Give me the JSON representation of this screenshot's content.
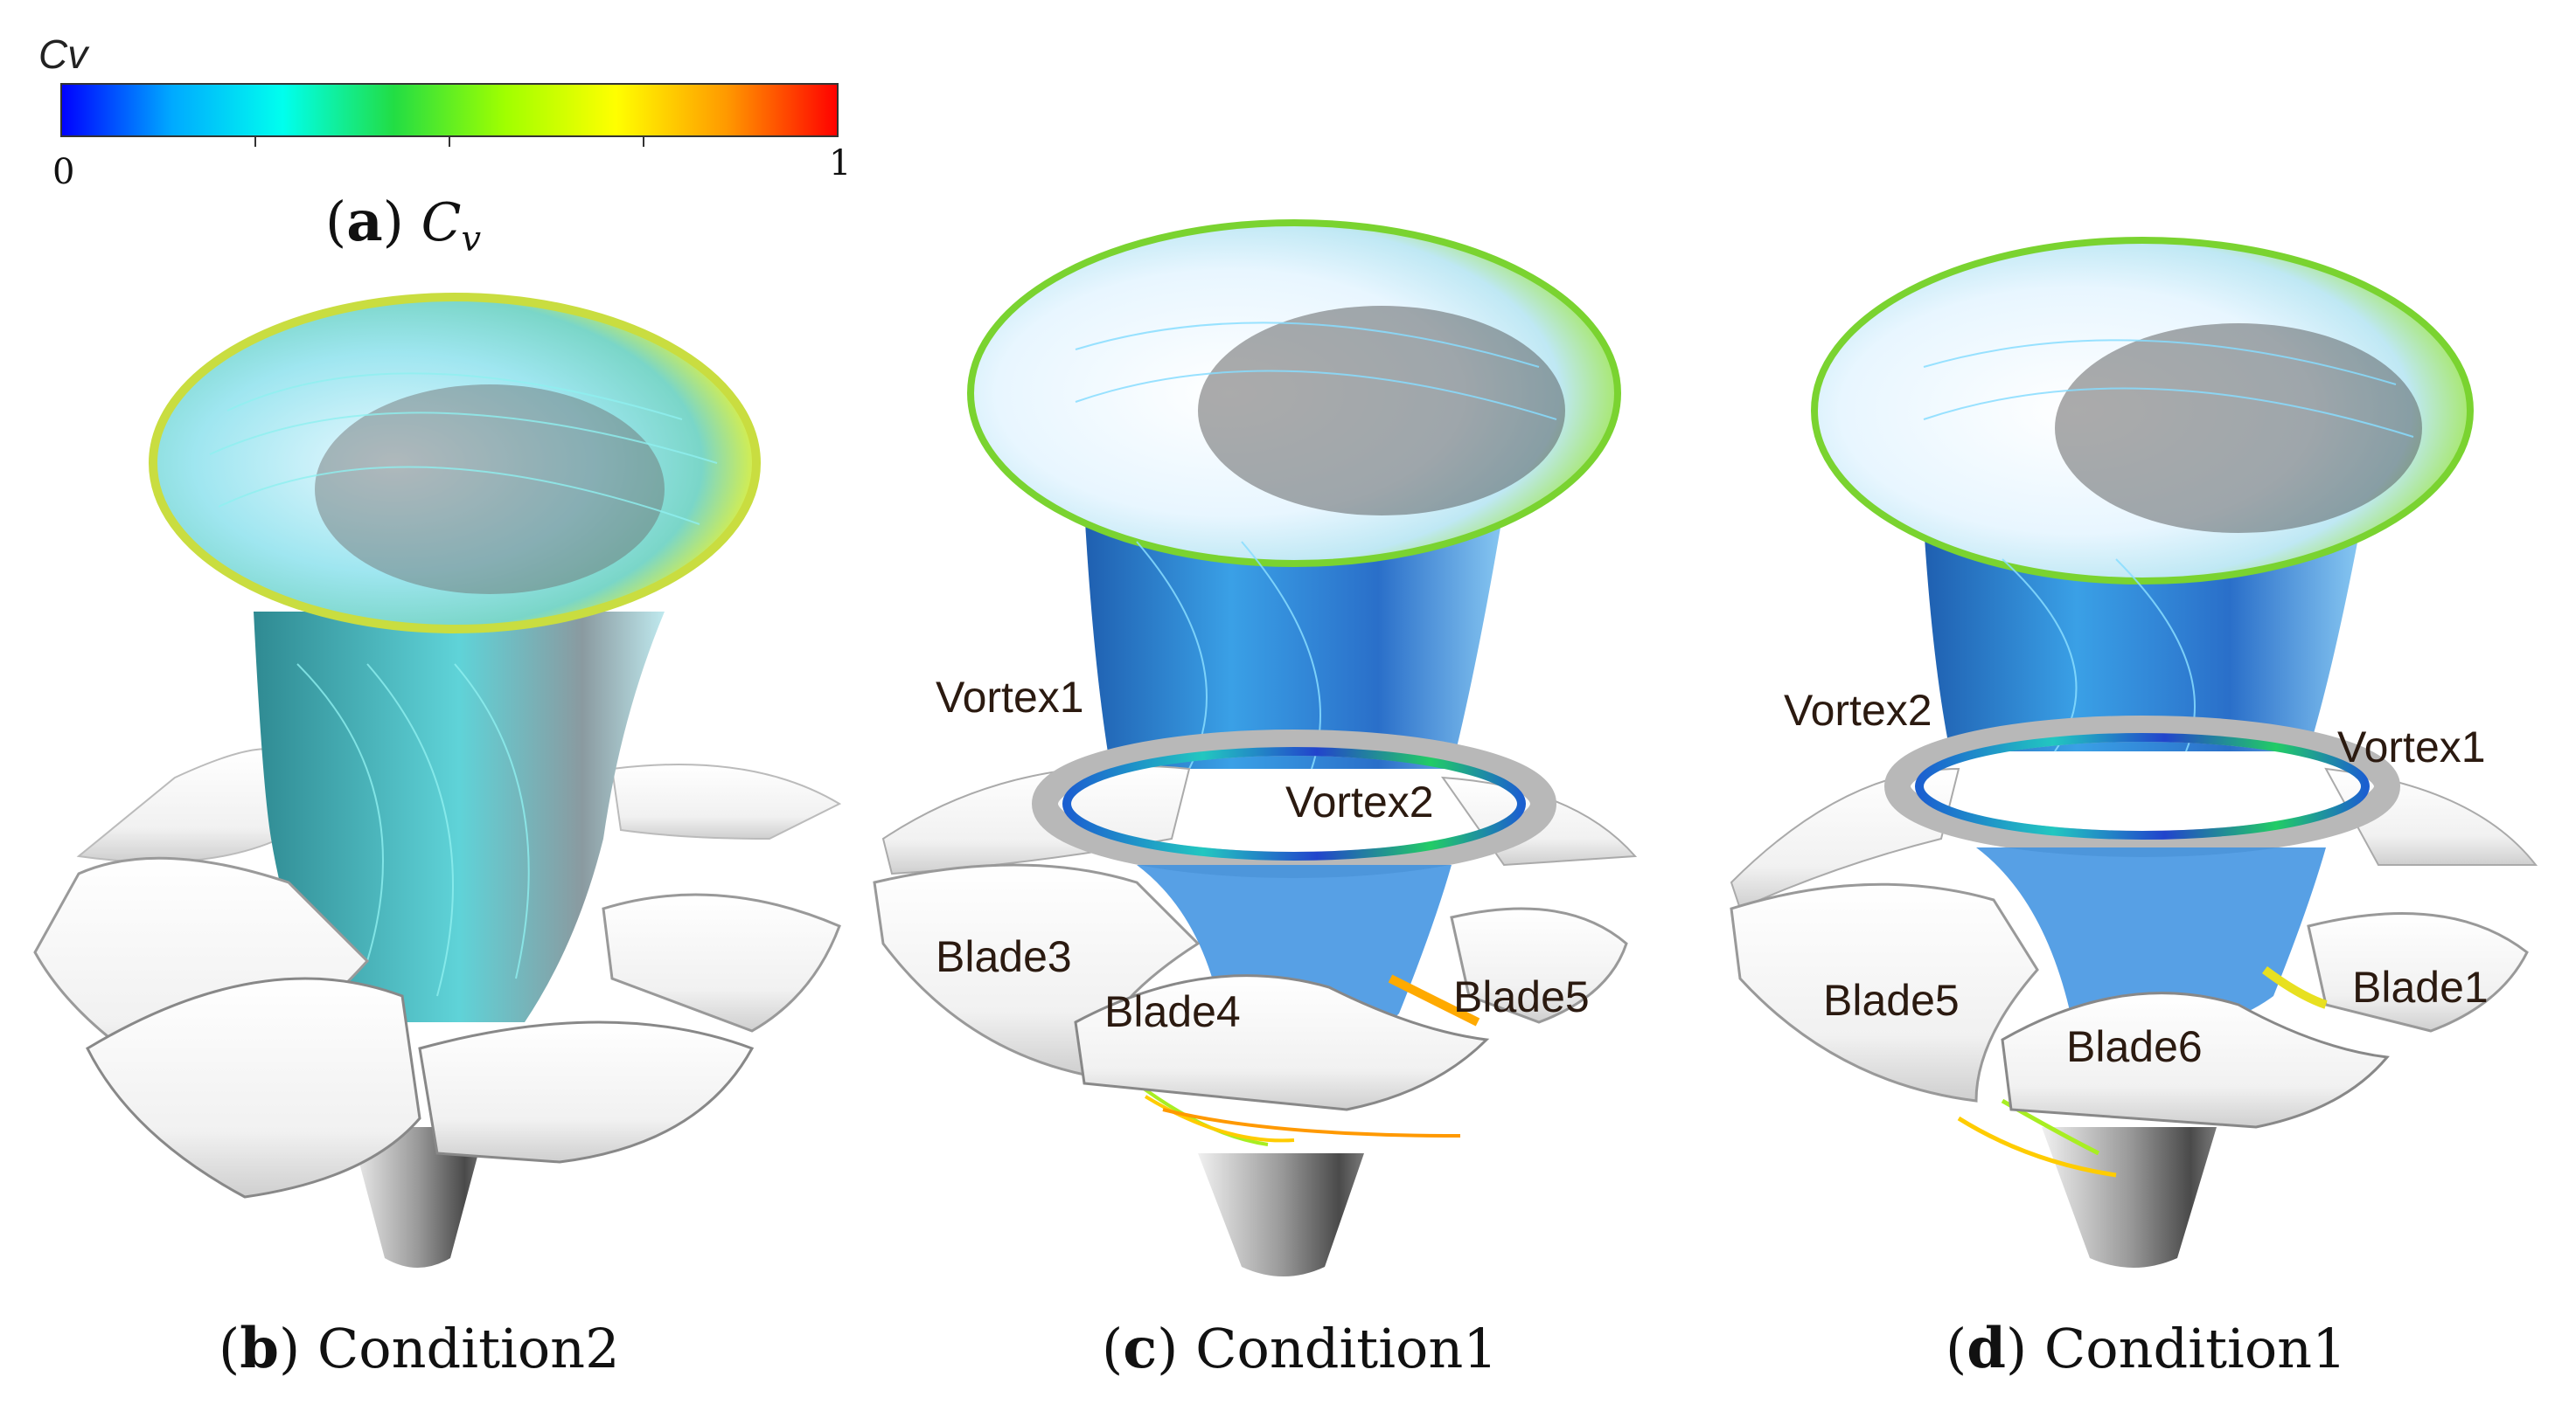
{
  "colorbar": {
    "title": "Cv",
    "min_label": "0",
    "max_label": "1",
    "min": 0,
    "max": 1,
    "stops": [
      "#0000ff",
      "#00aaff",
      "#00ffee",
      "#22dd44",
      "#a0ff00",
      "#ffff00",
      "#ff9900",
      "#ff0000"
    ]
  },
  "captions": {
    "a": {
      "letter": "a",
      "symbol": "C",
      "subscript": "v"
    },
    "b": {
      "letter": "b",
      "text": "Condition2"
    },
    "c": {
      "letter": "c",
      "text": "Condition1"
    },
    "d": {
      "letter": "d",
      "text": "Condition1"
    }
  },
  "panel_c": {
    "labels": [
      "Vortex1",
      "Vortex2",
      "Blade3",
      "Blade4",
      "Blade5"
    ]
  },
  "panel_d": {
    "labels": [
      "Vortex2",
      "Vortex1",
      "Blade5",
      "Blade6",
      "Blade1"
    ]
  }
}
